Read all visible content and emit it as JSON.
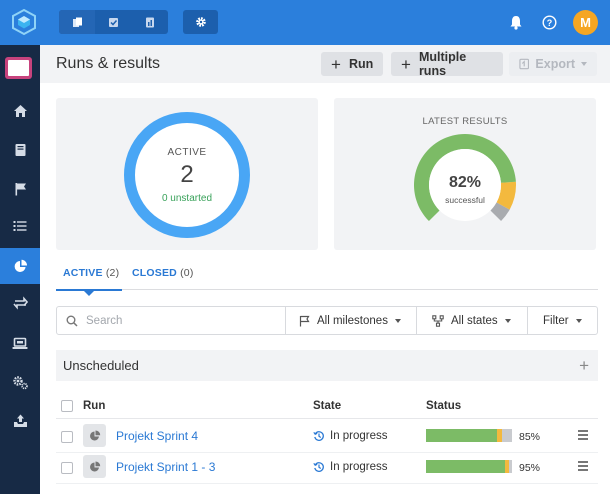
{
  "topbar": {
    "avatar_initial": "M",
    "accent": "#2b7fdc",
    "icons": [
      "app-logo-icon",
      "runs-view-icon",
      "checklist-view-icon",
      "document-view-icon",
      "gear-icon",
      "bell-icon",
      "help-icon"
    ]
  },
  "sidebar": {
    "items": [
      "home-icon",
      "book-icon",
      "flag-icon",
      "list-icon",
      "pie-chart-icon",
      "sync-icon",
      "laptop-icon",
      "settings-gears-icon",
      "upload-tray-icon"
    ],
    "active_item": "pie-chart-icon"
  },
  "header": {
    "title": "Runs & results",
    "run_label": "Run",
    "multiple_runs_label": "Multiple runs",
    "export_label": "Export"
  },
  "active_card": {
    "title": "ACTIVE",
    "count": "2",
    "subtitle": "0 unstarted"
  },
  "latest_card": {
    "title": "LATEST RESULTS",
    "percent": "82%",
    "label": "successful",
    "segments": [
      {
        "status": "passed",
        "fraction": 0.82,
        "color": "#7cbb66"
      },
      {
        "status": "blocked",
        "fraction": 0.12,
        "color": "#f3b93e"
      },
      {
        "status": "untested",
        "fraction": 0.06,
        "color": "#a9abaf"
      }
    ]
  },
  "tabs": [
    {
      "label": "ACTIVE",
      "count": "(2)"
    },
    {
      "label": "CLOSED",
      "count": "(0)"
    }
  ],
  "filters": {
    "search_placeholder": "Search",
    "milestones": "All milestones",
    "states": "All states",
    "filter": "Filter"
  },
  "group": {
    "title": "Unscheduled",
    "add": "+"
  },
  "table": {
    "columns": {
      "run": "Run",
      "state": "State",
      "status": "Status"
    },
    "rows": [
      {
        "name": "Projekt Sprint 4",
        "state": "In progress",
        "percent": "85%",
        "passed": 0.82,
        "blocked": 0.06
      },
      {
        "name": "Projekt Sprint 1 - 3",
        "state": "In progress",
        "percent": "95%",
        "passed": 0.92,
        "blocked": 0.05
      }
    ]
  }
}
